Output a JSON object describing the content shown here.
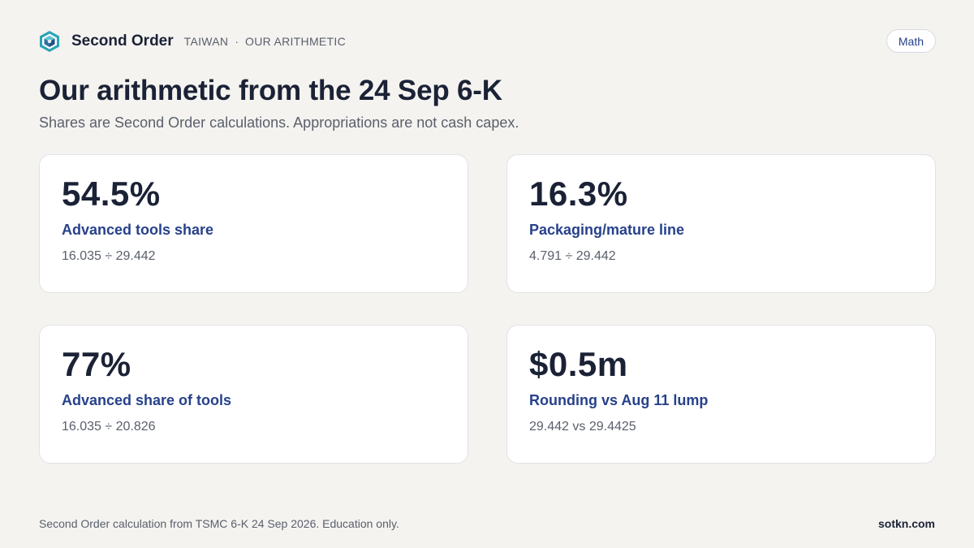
{
  "header": {
    "brand": "Second Order",
    "breadcrumb": [
      "TAIWAN",
      "OUR ARITHMETIC"
    ],
    "separator": "·",
    "badge": "Math",
    "logo_icon": "hexagon-cube-icon"
  },
  "title": "Our arithmetic from the 24 Sep 6-K",
  "subtitle": "Shares are Second Order calculations. Appropriations are not cash capex.",
  "cards": [
    {
      "value": "54.5%",
      "label": "Advanced tools share",
      "formula": "16.035 ÷ 29.442"
    },
    {
      "value": "16.3%",
      "label": "Packaging/mature line",
      "formula": "4.791 ÷ 29.442"
    },
    {
      "value": "77%",
      "label": "Advanced share of tools",
      "formula": "16.035 ÷ 20.826"
    },
    {
      "value": "$0.5m",
      "label": "Rounding vs Aug 11 lump",
      "formula": "29.442 vs 29.4425"
    }
  ],
  "footer": {
    "note": "Second Order calculation from TSMC 6-K 24 Sep 2026. Education only.",
    "site": "sotkn.com"
  },
  "colors": {
    "background": "#f4f3f0",
    "text_dark": "#1b2236",
    "accent_blue": "#27418a",
    "muted": "#5a5f6b",
    "logo_teal": "#2aa3b5"
  }
}
